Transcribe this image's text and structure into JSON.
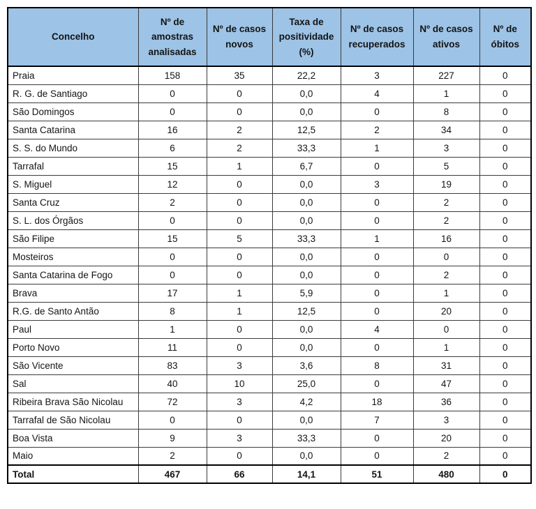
{
  "colors": {
    "header_bg": "#9DC3E6",
    "border": "#000000",
    "text": "#141414"
  },
  "table": {
    "header": [
      "Concelho",
      "Nº de amostras analisadas",
      "Nº de casos novos",
      "Taxa de positividade (%)",
      "Nº de casos recuperados",
      "Nº de casos ativos",
      "Nº de óbitos"
    ],
    "rows": [
      [
        "Praia",
        "158",
        "35",
        "22,2",
        "3",
        "227",
        "0"
      ],
      [
        "R. G. de Santiago",
        "0",
        "0",
        "0,0",
        "4",
        "1",
        "0"
      ],
      [
        "São Domingos",
        "0",
        "0",
        "0,0",
        "0",
        "8",
        "0"
      ],
      [
        "Santa Catarina",
        "16",
        "2",
        "12,5",
        "2",
        "34",
        "0"
      ],
      [
        "S. S. do Mundo",
        "6",
        "2",
        "33,3",
        "1",
        "3",
        "0"
      ],
      [
        "Tarrafal",
        "15",
        "1",
        "6,7",
        "0",
        "5",
        "0"
      ],
      [
        "S. Miguel",
        "12",
        "0",
        "0,0",
        "3",
        "19",
        "0"
      ],
      [
        "Santa Cruz",
        "2",
        "0",
        "0,0",
        "0",
        "2",
        "0"
      ],
      [
        "S. L. dos Órgãos",
        "0",
        "0",
        "0,0",
        "0",
        "2",
        "0"
      ],
      [
        "São Filipe",
        "15",
        "5",
        "33,3",
        "1",
        "16",
        "0"
      ],
      [
        "Mosteiros",
        "0",
        "0",
        "0,0",
        "0",
        "0",
        "0"
      ],
      [
        "Santa Catarina de Fogo",
        "0",
        "0",
        "0,0",
        "0",
        "2",
        "0"
      ],
      [
        "Brava",
        "17",
        "1",
        "5,9",
        "0",
        "1",
        "0"
      ],
      [
        "R.G. de Santo Antão",
        "8",
        "1",
        "12,5",
        "0",
        "20",
        "0"
      ],
      [
        "Paul",
        "1",
        "0",
        "0,0",
        "4",
        "0",
        "0"
      ],
      [
        "Porto Novo",
        "11",
        "0",
        "0,0",
        "0",
        "1",
        "0"
      ],
      [
        "São Vicente",
        "83",
        "3",
        "3,6",
        "8",
        "31",
        "0"
      ],
      [
        "Sal",
        "40",
        "10",
        "25,0",
        "0",
        "47",
        "0"
      ],
      [
        "Ribeira Brava São Nicolau",
        "72",
        "3",
        "4,2",
        "18",
        "36",
        "0"
      ],
      [
        "Tarrafal de São Nicolau",
        "0",
        "0",
        "0,0",
        "7",
        "3",
        "0"
      ],
      [
        "Boa Vista",
        "9",
        "3",
        "33,3",
        "0",
        "20",
        "0"
      ],
      [
        "Maio",
        "2",
        "0",
        "0,0",
        "0",
        "2",
        "0"
      ]
    ],
    "total": [
      "Total",
      "467",
      "66",
      "14,1",
      "51",
      "480",
      "0"
    ]
  }
}
